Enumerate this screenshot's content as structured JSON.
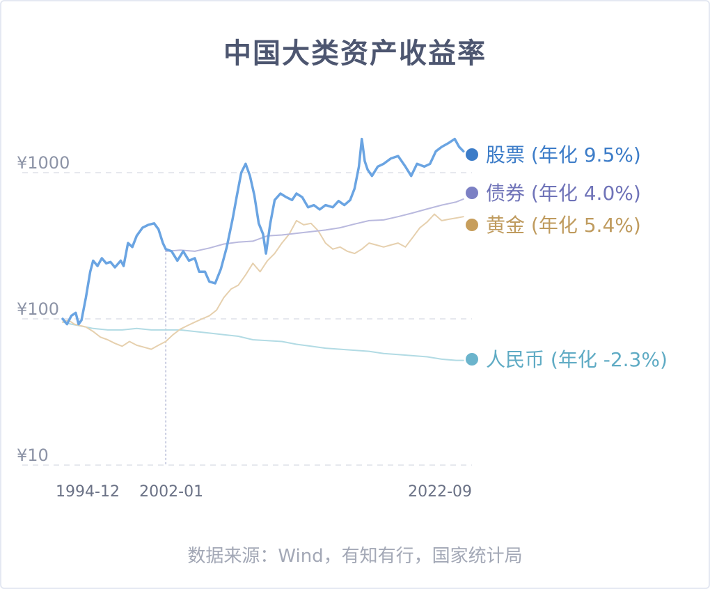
{
  "page": {
    "title": "中国大类资产收益率",
    "source": "数据来源：Wind，有知有行，国家统计局"
  },
  "chart_data": {
    "type": "line",
    "title": "中国大类资产收益率",
    "y_scale": "log",
    "ylim": [
      10,
      2000
    ],
    "y_ticks": [
      {
        "value": 10,
        "label": "¥10"
      },
      {
        "value": 100,
        "label": "¥100"
      },
      {
        "value": 1000,
        "label": "¥1000"
      }
    ],
    "x_range": [
      1994.9,
      2022.7
    ],
    "x_ticks": [
      {
        "value": 1994.9,
        "label": "1994-12"
      },
      {
        "value": 2002.0,
        "label": "2002-01"
      },
      {
        "value": 2022.7,
        "label": "2022-09"
      }
    ],
    "reference_line_x": 2002.0,
    "grid": "horizontal-dashed",
    "legend": "right-end-labels",
    "series": [
      {
        "name": "股票",
        "annual": "9.5%",
        "label": "股票 (年化 9.5%)",
        "color": "#6aa4e2",
        "label_color": "#3c7cc8",
        "dot_color": "#3c7cc8",
        "width": 3.5,
        "points": [
          [
            1994.9,
            100
          ],
          [
            1995.2,
            92
          ],
          [
            1995.5,
            105
          ],
          [
            1995.8,
            110
          ],
          [
            1996.0,
            92
          ],
          [
            1996.2,
            98
          ],
          [
            1996.5,
            140
          ],
          [
            1996.8,
            210
          ],
          [
            1997.0,
            250
          ],
          [
            1997.3,
            230
          ],
          [
            1997.6,
            260
          ],
          [
            1997.9,
            240
          ],
          [
            1998.2,
            245
          ],
          [
            1998.5,
            225
          ],
          [
            1998.9,
            250
          ],
          [
            1999.1,
            230
          ],
          [
            1999.4,
            330
          ],
          [
            1999.7,
            310
          ],
          [
            2000.0,
            370
          ],
          [
            2000.4,
            420
          ],
          [
            2000.8,
            440
          ],
          [
            2001.2,
            450
          ],
          [
            2001.5,
            410
          ],
          [
            2001.8,
            330
          ],
          [
            2002.0,
            300
          ],
          [
            2002.4,
            290
          ],
          [
            2002.8,
            250
          ],
          [
            2003.2,
            290
          ],
          [
            2003.6,
            250
          ],
          [
            2004.0,
            260
          ],
          [
            2004.3,
            210
          ],
          [
            2004.7,
            210
          ],
          [
            2005.0,
            180
          ],
          [
            2005.4,
            175
          ],
          [
            2005.8,
            220
          ],
          [
            2006.2,
            310
          ],
          [
            2006.6,
            480
          ],
          [
            2006.9,
            700
          ],
          [
            2007.2,
            1000
          ],
          [
            2007.5,
            1150
          ],
          [
            2007.8,
            950
          ],
          [
            2008.1,
            700
          ],
          [
            2008.4,
            450
          ],
          [
            2008.7,
            380
          ],
          [
            2008.9,
            280
          ],
          [
            2009.2,
            450
          ],
          [
            2009.5,
            650
          ],
          [
            2009.9,
            720
          ],
          [
            2010.3,
            680
          ],
          [
            2010.7,
            650
          ],
          [
            2011.0,
            720
          ],
          [
            2011.4,
            680
          ],
          [
            2011.8,
            580
          ],
          [
            2012.2,
            600
          ],
          [
            2012.6,
            560
          ],
          [
            2013.0,
            600
          ],
          [
            2013.5,
            580
          ],
          [
            2013.9,
            640
          ],
          [
            2014.3,
            600
          ],
          [
            2014.7,
            650
          ],
          [
            2015.0,
            780
          ],
          [
            2015.3,
            1100
          ],
          [
            2015.5,
            1700
          ],
          [
            2015.7,
            1200
          ],
          [
            2015.9,
            1050
          ],
          [
            2016.2,
            950
          ],
          [
            2016.6,
            1100
          ],
          [
            2017.0,
            1150
          ],
          [
            2017.5,
            1250
          ],
          [
            2018.0,
            1300
          ],
          [
            2018.5,
            1100
          ],
          [
            2018.9,
            950
          ],
          [
            2019.3,
            1150
          ],
          [
            2019.8,
            1100
          ],
          [
            2020.2,
            1150
          ],
          [
            2020.6,
            1400
          ],
          [
            2021.0,
            1500
          ],
          [
            2021.5,
            1600
          ],
          [
            2021.9,
            1700
          ],
          [
            2022.2,
            1500
          ],
          [
            2022.5,
            1400
          ]
        ]
      },
      {
        "name": "债券",
        "annual": "4.0%",
        "label": "债券 (年化 4.0%)",
        "color": "#b9b9de",
        "label_color": "#6f73b8",
        "dot_color": "#7c80c4",
        "width": 2,
        "points": [
          [
            2002.0,
            290
          ],
          [
            2003.0,
            295
          ],
          [
            2004.0,
            290
          ],
          [
            2005.0,
            305
          ],
          [
            2006.0,
            325
          ],
          [
            2007.0,
            335
          ],
          [
            2008.0,
            340
          ],
          [
            2009.0,
            370
          ],
          [
            2010.0,
            375
          ],
          [
            2011.0,
            385
          ],
          [
            2012.0,
            395
          ],
          [
            2013.0,
            405
          ],
          [
            2014.0,
            420
          ],
          [
            2015.0,
            445
          ],
          [
            2016.0,
            470
          ],
          [
            2017.0,
            475
          ],
          [
            2018.0,
            500
          ],
          [
            2019.0,
            530
          ],
          [
            2020.0,
            565
          ],
          [
            2021.0,
            600
          ],
          [
            2022.0,
            630
          ],
          [
            2022.5,
            660
          ]
        ]
      },
      {
        "name": "黄金",
        "annual": "5.4%",
        "label": "黄金 (年化 5.4%)",
        "color": "#e6d0ae",
        "label_color": "#bf9b5e",
        "dot_color": "#c79e5c",
        "width": 2,
        "points": [
          [
            1994.9,
            95
          ],
          [
            1995.3,
            98
          ],
          [
            1995.7,
            92
          ],
          [
            1996.1,
            90
          ],
          [
            1996.5,
            88
          ],
          [
            1997.0,
            82
          ],
          [
            1997.5,
            75
          ],
          [
            1998.0,
            72
          ],
          [
            1998.5,
            68
          ],
          [
            1999.0,
            65
          ],
          [
            1999.5,
            70
          ],
          [
            2000.0,
            66
          ],
          [
            2000.5,
            64
          ],
          [
            2001.0,
            62
          ],
          [
            2001.5,
            66
          ],
          [
            2002.0,
            70
          ],
          [
            2002.5,
            78
          ],
          [
            2003.0,
            85
          ],
          [
            2003.5,
            90
          ],
          [
            2004.0,
            95
          ],
          [
            2004.5,
            100
          ],
          [
            2005.0,
            105
          ],
          [
            2005.5,
            115
          ],
          [
            2006.0,
            140
          ],
          [
            2006.5,
            160
          ],
          [
            2007.0,
            170
          ],
          [
            2007.5,
            200
          ],
          [
            2008.0,
            240
          ],
          [
            2008.5,
            210
          ],
          [
            2009.0,
            250
          ],
          [
            2009.5,
            280
          ],
          [
            2010.0,
            330
          ],
          [
            2010.5,
            380
          ],
          [
            2011.0,
            470
          ],
          [
            2011.5,
            440
          ],
          [
            2012.0,
            450
          ],
          [
            2012.5,
            400
          ],
          [
            2013.0,
            330
          ],
          [
            2013.5,
            300
          ],
          [
            2014.0,
            310
          ],
          [
            2014.5,
            290
          ],
          [
            2015.0,
            280
          ],
          [
            2015.5,
            300
          ],
          [
            2016.0,
            330
          ],
          [
            2016.5,
            320
          ],
          [
            2017.0,
            310
          ],
          [
            2017.5,
            320
          ],
          [
            2018.0,
            330
          ],
          [
            2018.5,
            310
          ],
          [
            2019.0,
            360
          ],
          [
            2019.5,
            420
          ],
          [
            2020.0,
            460
          ],
          [
            2020.5,
            520
          ],
          [
            2021.0,
            470
          ],
          [
            2021.5,
            480
          ],
          [
            2022.0,
            490
          ],
          [
            2022.5,
            500
          ]
        ]
      },
      {
        "name": "人民币",
        "annual": "-2.3%",
        "label": "人民币 (年化 -2.3%)",
        "color": "#b2dbe4",
        "label_color": "#5fabc4",
        "dot_color": "#6bb4cc",
        "width": 2,
        "points": [
          [
            1994.9,
            95
          ],
          [
            1995.5,
            92
          ],
          [
            1996.0,
            90
          ],
          [
            1996.5,
            88
          ],
          [
            1997.0,
            86
          ],
          [
            1998.0,
            84
          ],
          [
            1999.0,
            84
          ],
          [
            2000.0,
            86
          ],
          [
            2001.0,
            84
          ],
          [
            2002.0,
            84
          ],
          [
            2003.0,
            84
          ],
          [
            2004.0,
            82
          ],
          [
            2005.0,
            80
          ],
          [
            2006.0,
            78
          ],
          [
            2007.0,
            76
          ],
          [
            2008.0,
            72
          ],
          [
            2009.0,
            71
          ],
          [
            2010.0,
            70
          ],
          [
            2011.0,
            67
          ],
          [
            2012.0,
            65
          ],
          [
            2013.0,
            63
          ],
          [
            2014.0,
            62
          ],
          [
            2015.0,
            61
          ],
          [
            2016.0,
            60
          ],
          [
            2017.0,
            58
          ],
          [
            2018.0,
            57
          ],
          [
            2019.0,
            56
          ],
          [
            2020.0,
            55
          ],
          [
            2021.0,
            53
          ],
          [
            2022.0,
            52
          ],
          [
            2022.5,
            52
          ]
        ]
      }
    ]
  }
}
